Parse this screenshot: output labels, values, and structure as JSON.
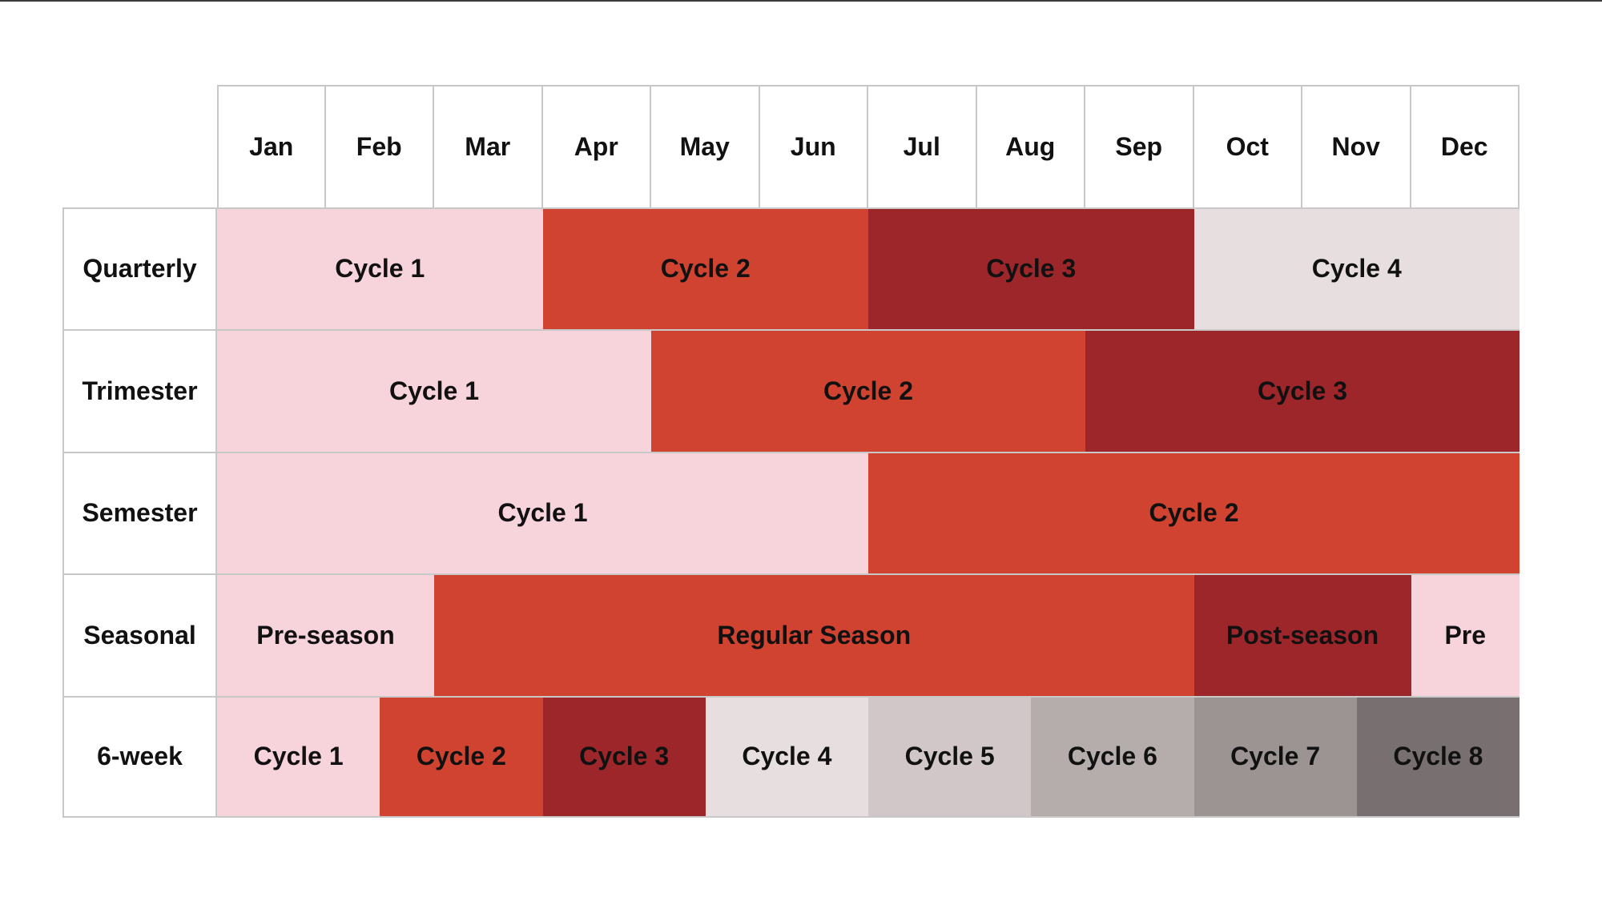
{
  "months": [
    "Jan",
    "Feb",
    "Mar",
    "Apr",
    "May",
    "Jun",
    "Jul",
    "Aug",
    "Sep",
    "Oct",
    "Nov",
    "Dec"
  ],
  "palette": {
    "pink": "#f7d3dc",
    "red": "#cf4330",
    "darkred": "#9d262b",
    "lightgray": "#e7dfdf",
    "gray1": "#d2c7c8",
    "gray2": "#b5acac",
    "gray3": "#9c9393",
    "gray4": "#787070"
  },
  "rows": [
    {
      "label": "Quarterly",
      "blocks": [
        {
          "label": "Cycle 1",
          "start": 1,
          "span": 3,
          "color": "pink"
        },
        {
          "label": "Cycle 2",
          "start": 4,
          "span": 3,
          "color": "red"
        },
        {
          "label": "Cycle 3",
          "start": 7,
          "span": 3,
          "color": "darkred"
        },
        {
          "label": "Cycle 4",
          "start": 10,
          "span": 3,
          "color": "lightgray"
        }
      ]
    },
    {
      "label": "Trimester",
      "blocks": [
        {
          "label": "Cycle 1",
          "start": 1,
          "span": 4,
          "color": "pink"
        },
        {
          "label": "Cycle 2",
          "start": 5,
          "span": 4,
          "color": "red"
        },
        {
          "label": "Cycle 3",
          "start": 9,
          "span": 4,
          "color": "darkred"
        }
      ]
    },
    {
      "label": "Semester",
      "blocks": [
        {
          "label": "Cycle 1",
          "start": 1,
          "span": 6,
          "color": "pink"
        },
        {
          "label": "Cycle 2",
          "start": 7,
          "span": 6,
          "color": "red"
        }
      ]
    },
    {
      "label": "Seasonal",
      "blocks": [
        {
          "label": "Pre-season",
          "start": 1,
          "span": 2,
          "color": "pink"
        },
        {
          "label": "Regular Season",
          "start": 3,
          "span": 7,
          "color": "red"
        },
        {
          "label": "Post-season",
          "start": 10,
          "span": 2,
          "color": "darkred"
        },
        {
          "label": "Pre",
          "start": 12,
          "span": 1,
          "color": "pink"
        }
      ]
    },
    {
      "label": "6-week",
      "blocks": [
        {
          "label": "Cycle 1",
          "start": 1,
          "span": 1.5,
          "color": "pink"
        },
        {
          "label": "Cycle 2",
          "start": 2.5,
          "span": 1.5,
          "color": "red"
        },
        {
          "label": "Cycle 3",
          "start": 4,
          "span": 1.5,
          "color": "darkred"
        },
        {
          "label": "Cycle 4",
          "start": 5.5,
          "span": 1.5,
          "color": "lightgray"
        },
        {
          "label": "Cycle 5",
          "start": 7,
          "span": 1.5,
          "color": "gray1"
        },
        {
          "label": "Cycle 6",
          "start": 8.5,
          "span": 1.5,
          "color": "gray2"
        },
        {
          "label": "Cycle 7",
          "start": 10,
          "span": 1.5,
          "color": "gray3"
        },
        {
          "label": "Cycle 8",
          "start": 11.5,
          "span": 1.5,
          "color": "gray4"
        }
      ]
    }
  ]
}
